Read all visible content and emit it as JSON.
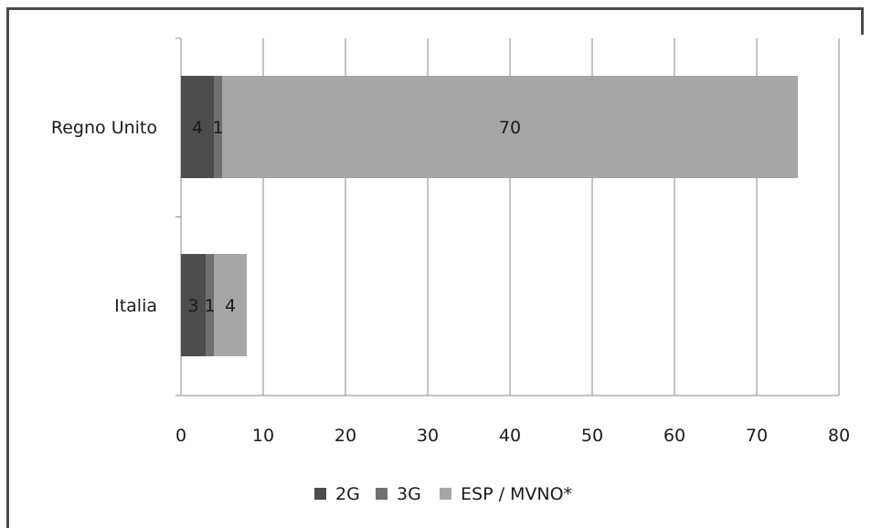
{
  "chart_data": {
    "type": "bar",
    "orientation": "horizontal",
    "stacked": true,
    "categories": [
      "Regno Unito",
      "Italia"
    ],
    "series": [
      {
        "name": "2G",
        "values": [
          4,
          3
        ],
        "color": "#4d4d4d"
      },
      {
        "name": "3G",
        "values": [
          1,
          1
        ],
        "color": "#707070"
      },
      {
        "name": "ESP / MVNO*",
        "values": [
          70,
          4
        ],
        "color": "#a6a6a6"
      }
    ],
    "xlim": [
      0,
      80
    ],
    "xticks": [
      "0",
      "10",
      "20",
      "30",
      "40",
      "50",
      "60",
      "70",
      "80"
    ],
    "grid": true,
    "legend": "bottom"
  }
}
